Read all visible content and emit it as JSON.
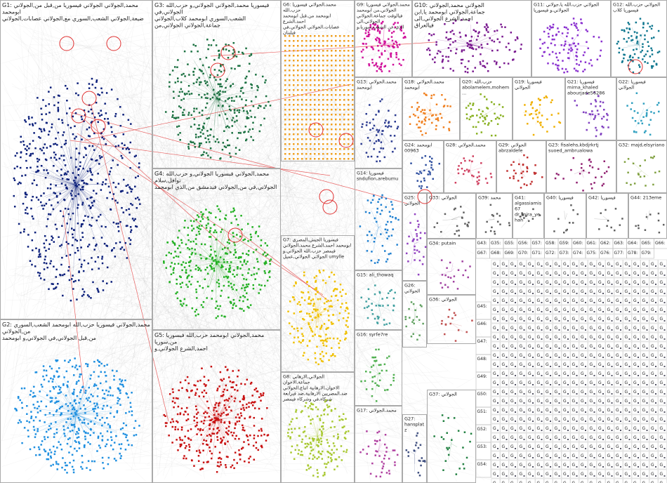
{
  "groups": [
    {
      "id": "G1",
      "color": "#0b1f7a",
      "lines": [
        "محمد,الجولاني الجولاني فيسوريا من,قبل من,الجولاني ابومحمد",
        "ضيعة,الجولاني الشعب,السوري مع,الجولاني عصابات,الجولاني"
      ]
    },
    {
      "id": "G2",
      "color": "#1e8fe0",
      "lines": [
        "محمد,الجولاني فيسوريا حزب,الله ابومحمد الشعب,السوري من,الجولاني",
        "من,قبل الجولاني,في الجولاني,و ابومحمد"
      ]
    },
    {
      "id": "G3",
      "color": "#1a7040",
      "lines": [
        "فيسوريا محمد,الجولاني الجولاني,و حزب,الله الجولاني,في",
        "الشعب,السوري ابومحمد كلاب,الجولاني جماعة,الجولاني الجولاني,من"
      ]
    },
    {
      "id": "G4",
      "color": "#22b022",
      "lines": [
        "محمد,الجولاني فيسوريا الجولاني,و حزب,الله نوافل,سلام",
        "الجولاني,في من,الجولاني فيدمشق من,الذي ابومحمد"
      ]
    },
    {
      "id": "G5",
      "color": "#c81010",
      "lines": [
        "محمد,الجولاني ابومحمد حزب,الله فيسوريا من,سوريا",
        "احمد,الشرع الجولاني,و"
      ]
    },
    {
      "id": "G6",
      "color": "#f0a020",
      "lines": [
        "محمد,الجولاني فيسوريا حزب,الله",
        "ابومحمد من,قبل ابومحمد احمد,الشرع",
        "عصابات,الجولاني الجولاني,في فيلبنان"
      ]
    },
    {
      "id": "G7",
      "color": "#f0c000",
      "lines": [
        "فيسوريا الجيش,المصري",
        "ابومحمد احمد,الشرع محمد,الجولاني",
        "فيمصر حزب,الله الجولاني,و",
        "الجولاني الجولاني,عميل umylle"
      ]
    },
    {
      "id": "G8",
      "color": "#a8c830",
      "lines": [
        "الجولاني,الارهابي جماعة,الاخوان",
        "الاخوان,الارهابية اتباع,الجولاني",
        "ضد,المصريين الارهابية,ضد فيرابعة",
        "شركاء,في وشركاء فيمصر"
      ]
    },
    {
      "id": "G9",
      "color": "#d0109a",
      "lines": [
        "محمد,الجولاني فيسوريا الجولاني,من ابومحمد",
        "فيالوقت جماعة,الجولاني الجولاني,الى",
        "الذي,عن الشعب,سوريا,و"
      ]
    },
    {
      "id": "G10",
      "color": "#7a1a90",
      "lines": [
        "الجولاني محمد,الجولاني",
        "جماعة,الجولاني ابومحمد يا,ابن",
        "احمد,الشرع الجولاني,الى",
        "فيالعراق"
      ]
    },
    {
      "id": "G11",
      "color": "#8a30d0",
      "lines": [
        "الجولاني حزب,الله يا,جولاني",
        "الجولاني,و فيسوريا"
      ]
    },
    {
      "id": "G12",
      "color": "#107890",
      "lines": [
        "الجولاني حزب,الله",
        "فيسوريا كلاب"
      ]
    },
    {
      "id": "G13",
      "color": "#2a3a90",
      "lines": [
        "محمد,الجولاني",
        "ابومحمد"
      ]
    },
    {
      "id": "G18",
      "color": "#f08020",
      "lines": [
        "محمد,الجولاني",
        "ابومحمد"
      ]
    },
    {
      "id": "G20",
      "color": "#88b020",
      "lines": [
        "حزب,الله",
        "abolamelem,mohem..."
      ]
    },
    {
      "id": "G19",
      "color": "#f0b000",
      "lines": [
        "فيسوريا",
        "الجولاني"
      ]
    },
    {
      "id": "G21",
      "color": "#8040c0",
      "lines": [
        "فيسوريا",
        "mirna_khaled",
        "abourjade56286"
      ]
    },
    {
      "id": "G22",
      "color": "#30a0c0",
      "lines": [
        "فيسوريا",
        "الجولاني"
      ]
    },
    {
      "id": "G24",
      "color": "#3050a0",
      "lines": [
        "ابومحمد",
        "00963"
      ]
    },
    {
      "id": "G28",
      "color": "#d04060",
      "lines": [
        "محمد,الجولاني"
      ]
    },
    {
      "id": "G29",
      "color": "#c03030",
      "lines": [
        "الجولاني",
        "abrzaldefe"
      ]
    },
    {
      "id": "G23",
      "color": "#902070",
      "lines": [
        "fisalehs,kbdjrkrtj",
        "suoed_ambrualowa"
      ]
    },
    {
      "id": "G32",
      "color": "#80a040",
      "lines": [
        "majd,elsyriano"
      ]
    },
    {
      "id": "G14",
      "color": "#2080d0",
      "lines": [
        "فيسوريا",
        "sndufion,arebumu"
      ]
    },
    {
      "id": "G25",
      "color": "#9040c0",
      "lines": [
        "الجولاني"
      ]
    },
    {
      "id": "G33",
      "color": "#606060",
      "lines": [
        "الجولاني"
      ]
    },
    {
      "id": "G39",
      "color": "#606060",
      "lines": [
        "محمد"
      ]
    },
    {
      "id": "G41",
      "color": "#606060",
      "lines": [
        "algassiamis67",
        "dr_mira_yehah"
      ]
    },
    {
      "id": "G40",
      "color": "#606060",
      "lines": [
        "فيسوريا"
      ]
    },
    {
      "id": "G42",
      "color": "#606060",
      "lines": [
        "فيسوريا"
      ]
    },
    {
      "id": "G44",
      "color": "#606060",
      "lines": [
        "213eme"
      ]
    },
    {
      "id": "G15",
      "color": "#40a0a0",
      "lines": [
        "ali_thowaq"
      ]
    },
    {
      "id": "G34",
      "color": "#a040a0",
      "lines": [
        "putain"
      ]
    },
    {
      "id": "G26",
      "color": "#60a060",
      "lines": [
        "الجولاني"
      ]
    },
    {
      "id": "G36",
      "color": "#c05050",
      "lines": [
        "الجولاني"
      ]
    },
    {
      "id": "G16",
      "color": "#50b050",
      "lines": [
        "syrfe7re"
      ]
    },
    {
      "id": "G17",
      "color": "#b040a0",
      "lines": [
        "محمد,الجولاني"
      ]
    },
    {
      "id": "G27",
      "color": "#405080",
      "lines": [
        "hansplatz"
      ]
    },
    {
      "id": "G37",
      "color": "#208040",
      "lines": [
        "الجولاني"
      ]
    }
  ],
  "small_groups": [
    "G43",
    "G35",
    "G55",
    "G56",
    "G57",
    "G58",
    "G59",
    "G60",
    "G61",
    "G62",
    "G63",
    "G64",
    "G65",
    "G66",
    "G67",
    "G68",
    "G69",
    "G70",
    "G71",
    "G72",
    "G73",
    "G74",
    "G75",
    "G76",
    "G77",
    "G78",
    "G79",
    "G45",
    "G46",
    "G47",
    "G48",
    "G49",
    "G50",
    "G51",
    "G52",
    "G53",
    "G54"
  ]
}
